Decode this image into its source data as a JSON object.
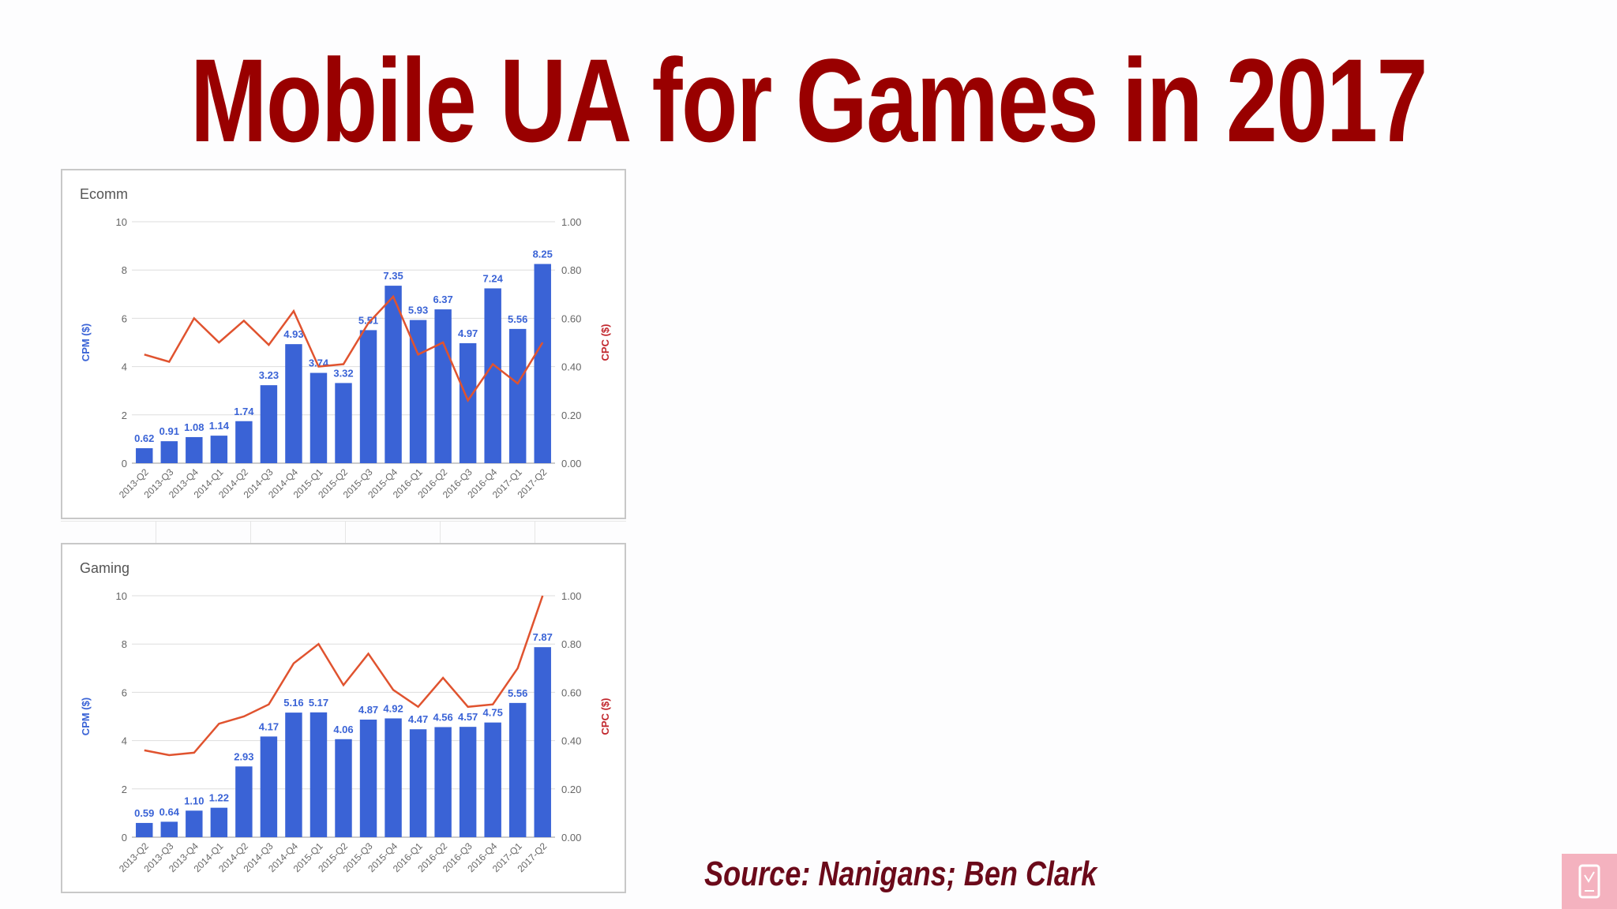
{
  "slide": {
    "title": "Mobile UA for Games in 2017",
    "source": "Source: Nanigans; Ben Clark"
  },
  "colors": {
    "title": "#990000",
    "source": "#6b0a1a",
    "bars": "#3a63d6",
    "line": "#e0532f",
    "badge": "#f4b2bf"
  },
  "icons": {
    "badge": "mobile-device-icon"
  },
  "chart_data": [
    {
      "type": "bar",
      "title": "Ecomm",
      "categories": [
        "2013-Q2",
        "2013-Q3",
        "2013-Q4",
        "2014-Q1",
        "2014-Q2",
        "2014-Q3",
        "2014-Q4",
        "2015-Q1",
        "2015-Q2",
        "2015-Q3",
        "2015-Q4",
        "2016-Q1",
        "2016-Q2",
        "2016-Q3",
        "2016-Q4",
        "2017-Q1",
        "2017-Q2"
      ],
      "ylabel": "CPM ($)",
      "y2label": "CPC ($)",
      "ylim": [
        0,
        10
      ],
      "y2lim": [
        0,
        1
      ],
      "yticks": [
        "0",
        "2",
        "4",
        "6",
        "8",
        "10"
      ],
      "y2ticks": [
        "0.00",
        "0.20",
        "0.40",
        "0.60",
        "0.80",
        "1.00"
      ],
      "grid": true,
      "series": [
        {
          "type": "bar",
          "axis": "left",
          "values": [
            0.62,
            0.91,
            1.08,
            1.14,
            1.74,
            3.23,
            4.93,
            3.74,
            3.32,
            5.51,
            7.35,
            5.93,
            6.37,
            4.97,
            7.24,
            5.56,
            8.25
          ],
          "labels": [
            "0.62",
            "0.91",
            "1.08",
            "1.14",
            "1.74",
            "3.23",
            "4.93",
            "3.74",
            "3.32",
            "5.51",
            "7.35",
            "5.93",
            "6.37",
            "4.97",
            "7.24",
            "5.56",
            "8.25"
          ]
        },
        {
          "type": "line",
          "axis": "right",
          "values": [
            0.45,
            0.42,
            0.6,
            0.5,
            0.59,
            0.49,
            0.63,
            0.4,
            0.41,
            0.58,
            0.69,
            0.45,
            0.5,
            0.26,
            0.41,
            0.33,
            0.5
          ]
        }
      ]
    },
    {
      "type": "bar",
      "title": "Gaming",
      "categories": [
        "2013-Q2",
        "2013-Q3",
        "2013-Q4",
        "2014-Q1",
        "2014-Q2",
        "2014-Q3",
        "2014-Q4",
        "2015-Q1",
        "2015-Q2",
        "2015-Q3",
        "2015-Q4",
        "2016-Q1",
        "2016-Q2",
        "2016-Q3",
        "2016-Q4",
        "2017-Q1",
        "2017-Q2"
      ],
      "ylabel": "CPM ($)",
      "y2label": "CPC ($)",
      "ylim": [
        0,
        10
      ],
      "y2lim": [
        0,
        1
      ],
      "yticks": [
        "0",
        "2",
        "4",
        "6",
        "8",
        "10"
      ],
      "y2ticks": [
        "0.00",
        "0.20",
        "0.40",
        "0.60",
        "0.80",
        "1.00"
      ],
      "grid": true,
      "series": [
        {
          "type": "bar",
          "axis": "left",
          "values": [
            0.59,
            0.64,
            1.1,
            1.22,
            2.93,
            4.17,
            5.16,
            5.17,
            4.06,
            4.87,
            4.92,
            4.47,
            4.56,
            4.57,
            4.75,
            5.56,
            7.87
          ],
          "labels": [
            "0.59",
            "0.64",
            "1.10",
            "1.22",
            "2.93",
            "4.17",
            "5.16",
            "5.17",
            "4.06",
            "4.87",
            "4.92",
            "4.47",
            "4.56",
            "4.57",
            "4.75",
            "5.56",
            "7.87"
          ]
        },
        {
          "type": "line",
          "axis": "right",
          "values": [
            0.36,
            0.34,
            0.35,
            0.47,
            0.5,
            0.55,
            0.72,
            0.8,
            0.63,
            0.76,
            0.61,
            0.54,
            0.66,
            0.54,
            0.55,
            0.7,
            1.0
          ]
        }
      ]
    }
  ]
}
